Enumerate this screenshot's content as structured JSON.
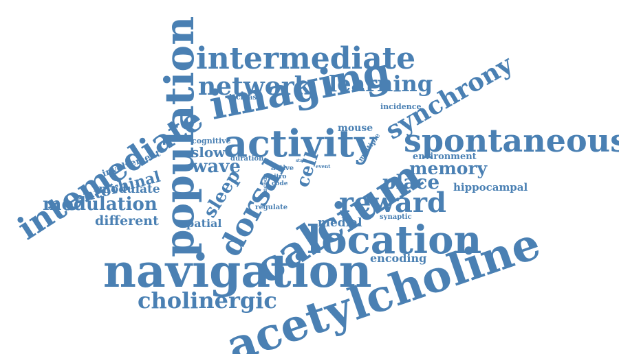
{
  "cloud": {
    "color": "#4a80b3",
    "words": [
      {
        "id": "population",
        "text": "population"
      },
      {
        "id": "intermediate",
        "text": "intermediate"
      },
      {
        "id": "network",
        "text": "network"
      },
      {
        "id": "learning",
        "text": "learning"
      },
      {
        "id": "imaging",
        "text": "imaging"
      },
      {
        "id": "synchrony",
        "text": "synchrony"
      },
      {
        "id": "decrease",
        "text": "decrease"
      },
      {
        "id": "incidence",
        "text": "incidence"
      },
      {
        "id": "intemediate",
        "text": "intemediate"
      },
      {
        "id": "cognitive",
        "text": "cognitive"
      },
      {
        "id": "mouse",
        "text": "mouse"
      },
      {
        "id": "slow",
        "text": "slow"
      },
      {
        "id": "activity",
        "text": "activity"
      },
      {
        "id": "multiple",
        "text": "multiple"
      },
      {
        "id": "spontaneous",
        "text": "spontaneous"
      },
      {
        "id": "involvement",
        "text": "involvement"
      },
      {
        "id": "environment",
        "text": "environment"
      },
      {
        "id": "entorhinal",
        "text": "entorhinal"
      },
      {
        "id": "wave",
        "text": "wave"
      },
      {
        "id": "duration",
        "text": "duration"
      },
      {
        "id": "state",
        "text": "state"
      },
      {
        "id": "event",
        "text": "event"
      },
      {
        "id": "memory",
        "text": "memory"
      },
      {
        "id": "active",
        "text": "active"
      },
      {
        "id": "vitro",
        "text": "vitro"
      },
      {
        "id": "code",
        "text": "code"
      },
      {
        "id": "cell",
        "text": "cell"
      },
      {
        "id": "sleep",
        "text": "sleep"
      },
      {
        "id": "encode",
        "text": "encode"
      },
      {
        "id": "place",
        "text": "place"
      },
      {
        "id": "calcium",
        "text": "calcium"
      },
      {
        "id": "modulate",
        "text": "modulate"
      },
      {
        "id": "hippocampal",
        "text": "hippocampal"
      },
      {
        "id": "dorsal",
        "text": "dorsal"
      },
      {
        "id": "modulation",
        "text": "modulation"
      },
      {
        "id": "reward",
        "text": "reward"
      },
      {
        "id": "regulate",
        "text": "regulate"
      },
      {
        "id": "different",
        "text": "different"
      },
      {
        "id": "synaptic",
        "text": "synaptic"
      },
      {
        "id": "spatial",
        "text": "spatial"
      },
      {
        "id": "medial",
        "text": "medial"
      },
      {
        "id": "location",
        "text": "location"
      },
      {
        "id": "navigation",
        "text": "navigation"
      },
      {
        "id": "encoding",
        "text": "encoding"
      },
      {
        "id": "acetylcholine",
        "text": "acetylcholine"
      },
      {
        "id": "cholinergic",
        "text": "cholinergic"
      },
      {
        "id": "acetylcholine-lower",
        "text": "acetylcholine"
      }
    ]
  }
}
